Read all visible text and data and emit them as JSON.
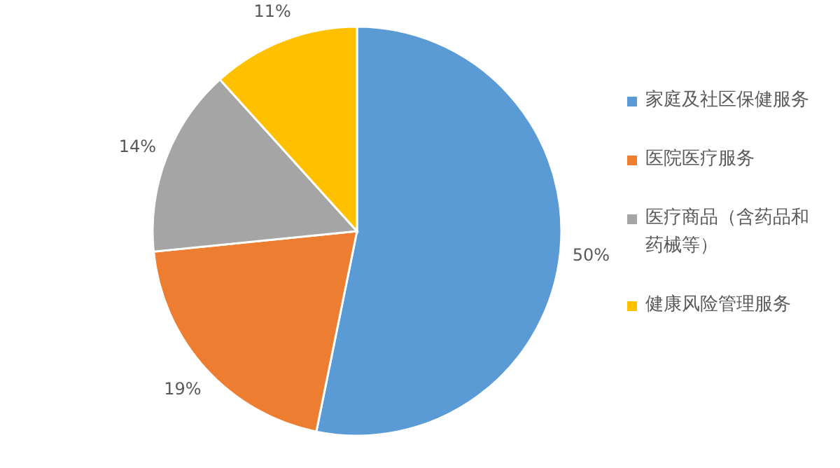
{
  "chart_data": {
    "type": "pie",
    "categories": [
      "家庭及社区保健服务",
      "医院医疗服务",
      "医疗商品（含药品和药械等）",
      "健康风险管理服务"
    ],
    "values": [
      50,
      19,
      14,
      11
    ],
    "colors": [
      "#5b9bd5",
      "#ed7d31",
      "#a5a5a5",
      "#ffc000"
    ],
    "value_labels": [
      "50%",
      "19%",
      "14%",
      "11%"
    ],
    "legend": "right"
  }
}
